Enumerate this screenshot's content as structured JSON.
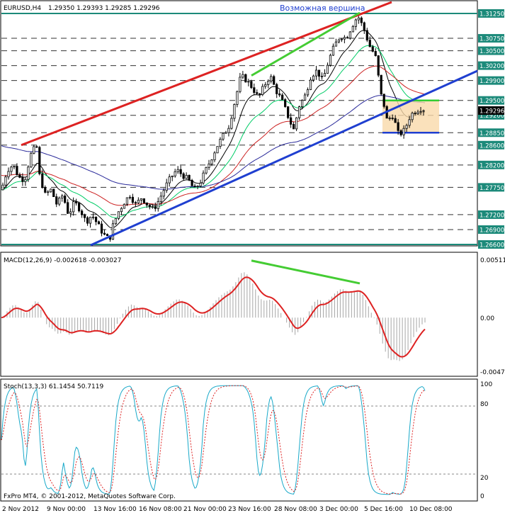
{
  "header": {
    "symbol": "EURUSD,H4",
    "ohlc": "1.29350 1.29393 1.29285 1.29296",
    "annotation": "Возможная вершина"
  },
  "macd": {
    "label": "MACD(12,26,9) -0.002618 -0.003027",
    "axis_labels": [
      "0.00511",
      "0.00",
      "-0.00471"
    ]
  },
  "stoch": {
    "label": "Stoch(13,3,3) 61.1454 50.7119",
    "axis_labels": [
      "100",
      "80",
      "20",
      "0"
    ]
  },
  "copyright": "FxPro MT4, © 2001-2012, MetaQuotes Software Corp.",
  "time_axis": [
    "2 Nov 2012",
    "9 Nov 00:00",
    "13 Nov 16:00",
    "16 Nov 08:00",
    "21 Nov 00:00",
    "23 Nov 16:00",
    "28 Nov 08:00",
    "3 Dec 00:00",
    "5 Dec 16:00",
    "10 Dec 08:00"
  ],
  "chart_data": {
    "type": "line",
    "instrument": "EURUSD",
    "timeframe": "H4",
    "price_axis": {
      "labels": [
        "1.31250",
        "1.30750",
        "1.30500",
        "1.30200",
        "1.29900",
        "1.29500",
        "1.29200",
        "1.28850",
        "1.28600",
        "1.28200",
        "1.27750",
        "1.27200",
        "1.26900",
        "1.26600"
      ],
      "ylim": [
        1.266,
        1.3125
      ],
      "current_price": "1.29296"
    },
    "price_path": [
      [
        0,
        1.277
      ],
      [
        4,
        1.281
      ],
      [
        8,
        1.282
      ],
      [
        12,
        1.2795
      ],
      [
        16,
        1.279
      ],
      [
        20,
        1.284
      ],
      [
        24,
        1.286
      ],
      [
        26,
        1.28
      ],
      [
        30,
        1.276
      ],
      [
        34,
        1.277
      ],
      [
        38,
        1.274
      ],
      [
        42,
        1.276
      ],
      [
        46,
        1.272
      ],
      [
        50,
        1.2745
      ],
      [
        54,
        1.273
      ],
      [
        58,
        1.2705
      ],
      [
        62,
        1.272
      ],
      [
        66,
        1.27
      ],
      [
        70,
        1.268
      ],
      [
        74,
        1.267
      ],
      [
        76,
        1.2695
      ],
      [
        80,
        1.2725
      ],
      [
        84,
        1.2745
      ],
      [
        88,
        1.276
      ],
      [
        92,
        1.274
      ],
      [
        96,
        1.2755
      ],
      [
        100,
        1.274
      ],
      [
        104,
        1.273
      ],
      [
        108,
        1.275
      ],
      [
        112,
        1.2775
      ],
      [
        116,
        1.2795
      ],
      [
        120,
        1.281
      ],
      [
        124,
        1.28
      ],
      [
        128,
        1.279
      ],
      [
        132,
        1.277
      ],
      [
        136,
        1.2785
      ],
      [
        140,
        1.281
      ],
      [
        144,
        1.2835
      ],
      [
        148,
        1.286
      ],
      [
        152,
        1.288
      ],
      [
        156,
        1.29
      ],
      [
        160,
        1.295
      ],
      [
        164,
        1.3
      ],
      [
        168,
        1.299
      ],
      [
        172,
        1.2975
      ],
      [
        176,
        1.2955
      ],
      [
        180,
        1.298
      ],
      [
        184,
        1.3
      ],
      [
        188,
        1.297
      ],
      [
        192,
        1.295
      ],
      [
        196,
        1.292
      ],
      [
        200,
        1.289
      ],
      [
        204,
        1.294
      ],
      [
        208,
        1.296
      ],
      [
        212,
        1.3
      ],
      [
        216,
        1.301
      ],
      [
        220,
        1.299
      ],
      [
        224,
        1.303
      ],
      [
        228,
        1.306
      ],
      [
        232,
        1.308
      ],
      [
        236,
        1.3075
      ],
      [
        240,
        1.31
      ],
      [
        244,
        1.312
      ],
      [
        248,
        1.3095
      ],
      [
        252,
        1.306
      ],
      [
        256,
        1.304
      ],
      [
        258,
        1.3
      ],
      [
        260,
        1.296
      ],
      [
        262,
        1.294
      ],
      [
        264,
        1.291
      ],
      [
        268,
        1.292
      ],
      [
        272,
        1.288
      ],
      [
        276,
        1.289
      ],
      [
        280,
        1.292
      ],
      [
        284,
        1.293
      ],
      [
        288,
        1.2935
      ],
      [
        290,
        1.293
      ]
    ],
    "moving_averages": [
      {
        "color": "#000000",
        "description": "fast MA (black)"
      },
      {
        "color": "#00cc66",
        "description": "medium MA (green)"
      },
      {
        "color": "#cc2222",
        "description": "slow MA (red)"
      },
      {
        "color": "#2a2a9a",
        "description": "long MA (dark blue)"
      }
    ],
    "drawn_objects": {
      "support_line_color": "#1f3fd0",
      "resistance_channel_color": "#dd2222",
      "divergence_color": "#44cc33",
      "range_box_color": "#f9d9aa"
    }
  },
  "colors": {
    "background": "#ffffff",
    "candle": "#000000",
    "macd_signal": "#dd2222",
    "macd_hist": "#a6a6a6",
    "stoch_main": "#19a9c9",
    "stoch_signal": "#dd2222",
    "level_line": "#1c8a7a"
  }
}
